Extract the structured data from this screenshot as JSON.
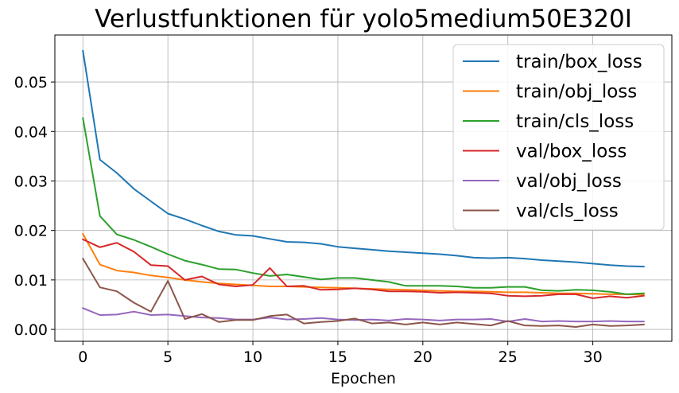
{
  "chart_data": {
    "type": "line",
    "title": "Verlustfunktionen für yolo5medium50E320I",
    "xlabel": "Epochen",
    "ylabel": "",
    "xlim": [
      -1.65,
      34.65
    ],
    "ylim": [
      -0.0024,
      0.0595
    ],
    "xticks": [
      0,
      5,
      10,
      15,
      20,
      25,
      30
    ],
    "xtick_labels": [
      "0",
      "5",
      "10",
      "15",
      "20",
      "25",
      "30"
    ],
    "yticks": [
      0.0,
      0.01,
      0.02,
      0.03,
      0.04,
      0.05
    ],
    "ytick_labels": [
      "0.00",
      "0.01",
      "0.02",
      "0.03",
      "0.04",
      "0.05"
    ],
    "grid": true,
    "legend_position": "top-right",
    "x": [
      0,
      1,
      2,
      3,
      4,
      5,
      6,
      7,
      8,
      9,
      10,
      11,
      12,
      13,
      14,
      15,
      16,
      17,
      18,
      19,
      20,
      21,
      22,
      23,
      24,
      25,
      26,
      27,
      28,
      29,
      30,
      31,
      32,
      33
    ],
    "series": [
      {
        "name": "train/box_loss",
        "color": "#1f77b4",
        "values": [
          0.0563,
          0.0343,
          0.0316,
          0.0284,
          0.0259,
          0.0234,
          0.0223,
          0.021,
          0.0198,
          0.0191,
          0.0189,
          0.0183,
          0.0177,
          0.0176,
          0.0173,
          0.0167,
          0.0164,
          0.0161,
          0.0158,
          0.0156,
          0.0154,
          0.0152,
          0.0149,
          0.0145,
          0.0144,
          0.0145,
          0.0143,
          0.014,
          0.0138,
          0.0136,
          0.0133,
          0.013,
          0.0128,
          0.0127
        ]
      },
      {
        "name": "train/obj_loss",
        "color": "#ff7f0e",
        "values": [
          0.0193,
          0.0131,
          0.0119,
          0.0115,
          0.0109,
          0.0105,
          0.01,
          0.0096,
          0.0093,
          0.0091,
          0.0089,
          0.0087,
          0.0087,
          0.0086,
          0.0085,
          0.0084,
          0.0083,
          0.0082,
          0.0081,
          0.008,
          0.0079,
          0.0078,
          0.0077,
          0.0077,
          0.0076,
          0.0075,
          0.0075,
          0.0074,
          0.0073,
          0.0073,
          0.0072,
          0.0071,
          0.0071,
          0.007
        ]
      },
      {
        "name": "train/cls_loss",
        "color": "#2ca02c",
        "values": [
          0.0427,
          0.0229,
          0.0192,
          0.0181,
          0.0167,
          0.0152,
          0.0139,
          0.0131,
          0.0122,
          0.0121,
          0.0114,
          0.0108,
          0.0111,
          0.0106,
          0.0101,
          0.0104,
          0.0104,
          0.01,
          0.0096,
          0.0088,
          0.0088,
          0.0088,
          0.0087,
          0.0084,
          0.0084,
          0.0086,
          0.0086,
          0.0079,
          0.0078,
          0.008,
          0.0079,
          0.0076,
          0.0071,
          0.0073
        ]
      },
      {
        "name": "val/box_loss",
        "color": "#d62728",
        "values": [
          0.0182,
          0.0166,
          0.0175,
          0.0157,
          0.013,
          0.0128,
          0.01,
          0.0107,
          0.0091,
          0.0087,
          0.009,
          0.0124,
          0.0087,
          0.0088,
          0.008,
          0.0081,
          0.0083,
          0.0081,
          0.0077,
          0.0077,
          0.0076,
          0.0074,
          0.0075,
          0.0074,
          0.0073,
          0.0068,
          0.0067,
          0.0068,
          0.0071,
          0.0071,
          0.0063,
          0.0067,
          0.0064,
          0.0068
        ]
      },
      {
        "name": "val/obj_loss",
        "color": "#9467bd",
        "values": [
          0.0043,
          0.0029,
          0.003,
          0.0036,
          0.0029,
          0.003,
          0.0027,
          0.0024,
          0.0023,
          0.002,
          0.002,
          0.0024,
          0.002,
          0.0021,
          0.0023,
          0.002,
          0.0019,
          0.002,
          0.0018,
          0.0021,
          0.002,
          0.0018,
          0.002,
          0.002,
          0.0021,
          0.0016,
          0.0021,
          0.0016,
          0.0017,
          0.0016,
          0.0016,
          0.0017,
          0.0016,
          0.0016
        ]
      },
      {
        "name": "val/cls_loss",
        "color": "#8c564b",
        "values": [
          0.0143,
          0.0085,
          0.0077,
          0.0054,
          0.0036,
          0.0098,
          0.0021,
          0.0031,
          0.0015,
          0.0019,
          0.0019,
          0.0027,
          0.003,
          0.0012,
          0.0015,
          0.0017,
          0.0022,
          0.0012,
          0.0014,
          0.001,
          0.0014,
          0.001,
          0.0014,
          0.0011,
          0.0008,
          0.0017,
          0.0008,
          0.0007,
          0.0008,
          0.0005,
          0.001,
          0.0007,
          0.0008,
          0.001
        ]
      }
    ]
  }
}
